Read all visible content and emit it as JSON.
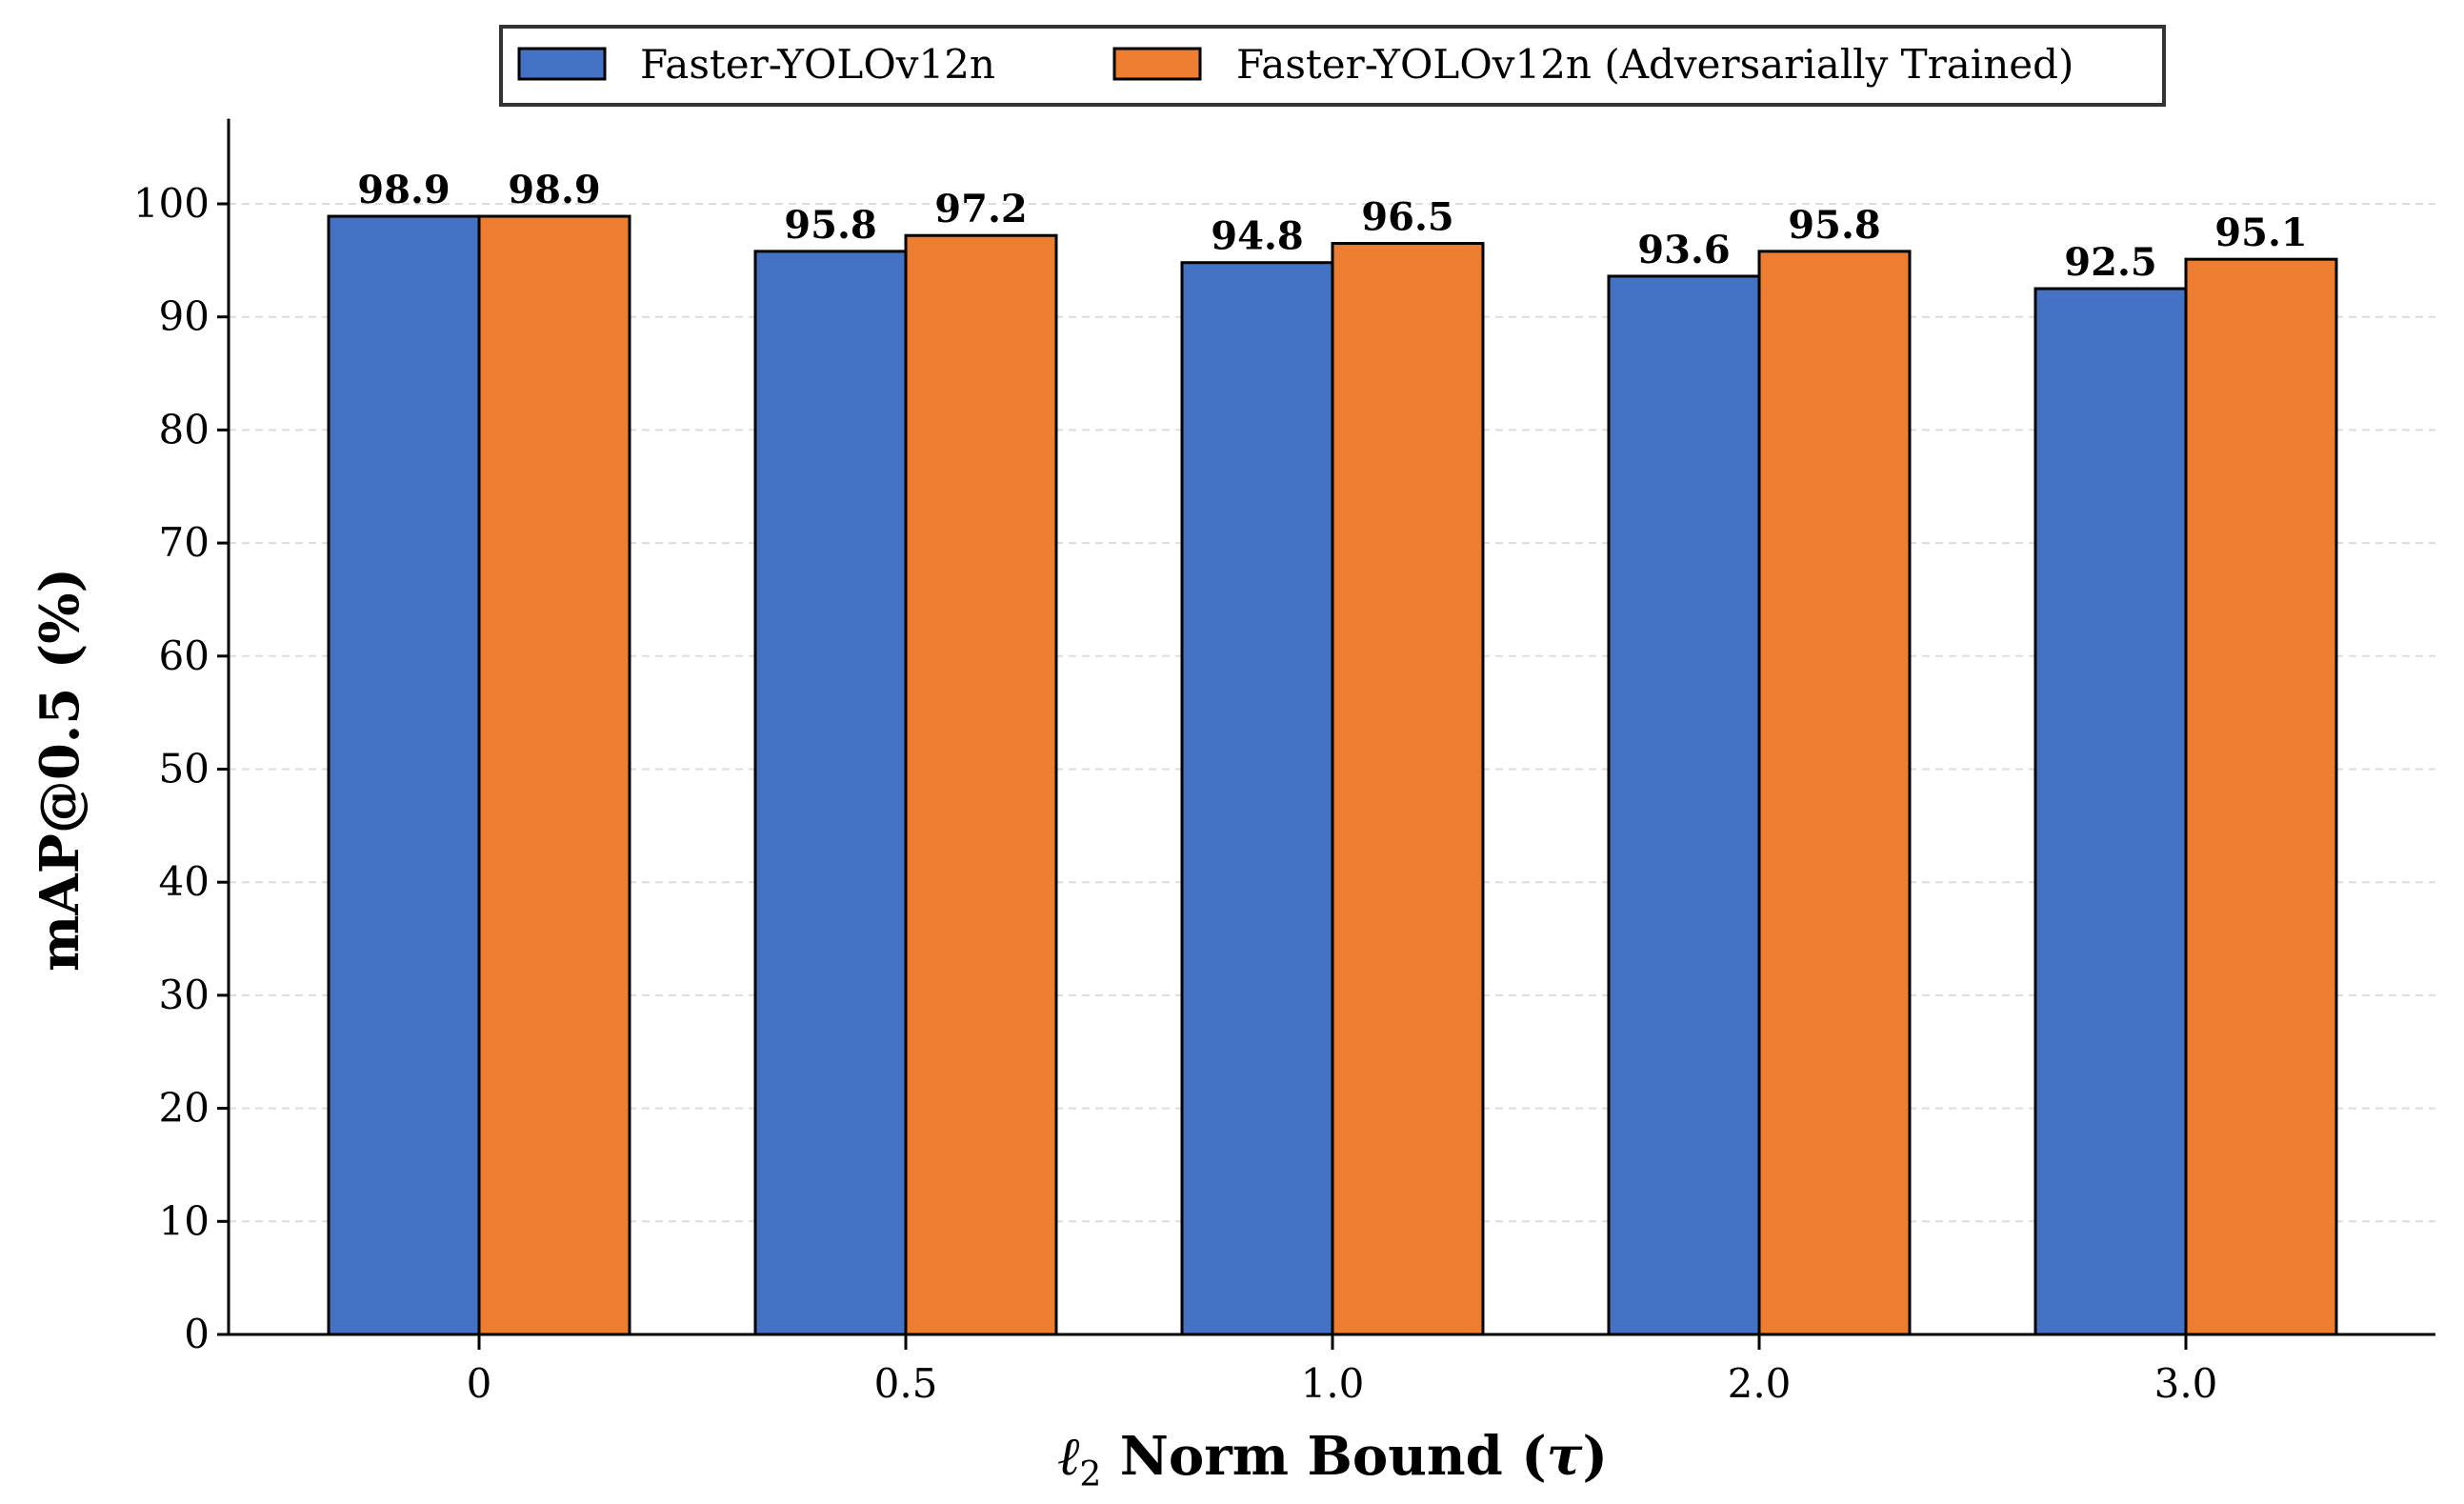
{
  "chart_data": {
    "type": "bar",
    "title": "",
    "xlabel": "ℓ₂ Norm Bound (τ)",
    "xlabel_parts": {
      "ell": "ℓ",
      "sub": "2",
      "rest": " Norm Bound (",
      "tau": "τ",
      "close": ")"
    },
    "ylabel": "mAP@0.5 (%)",
    "ylim": [
      0,
      105
    ],
    "yticks": [
      0,
      10,
      20,
      30,
      40,
      50,
      60,
      70,
      80,
      90,
      100
    ],
    "categories": [
      "0",
      "0.5",
      "1.0",
      "2.0",
      "3.0"
    ],
    "series": [
      {
        "name": "Faster-YOLOv12n",
        "color": "#4472C4",
        "values": [
          98.9,
          95.8,
          94.8,
          93.6,
          92.5
        ],
        "labels": [
          "98.9",
          "95.8",
          "94.8",
          "93.6",
          "92.5"
        ]
      },
      {
        "name": "Faster-YOLOv12n (Adversarially Trained)",
        "color": "#ED7D31",
        "values": [
          98.9,
          97.2,
          96.5,
          95.8,
          95.1
        ],
        "labels": [
          "98.9",
          "97.2",
          "96.5",
          "95.8",
          "95.1"
        ]
      }
    ],
    "grid": "y, dashed",
    "legend_placement": "top-center, outside"
  }
}
